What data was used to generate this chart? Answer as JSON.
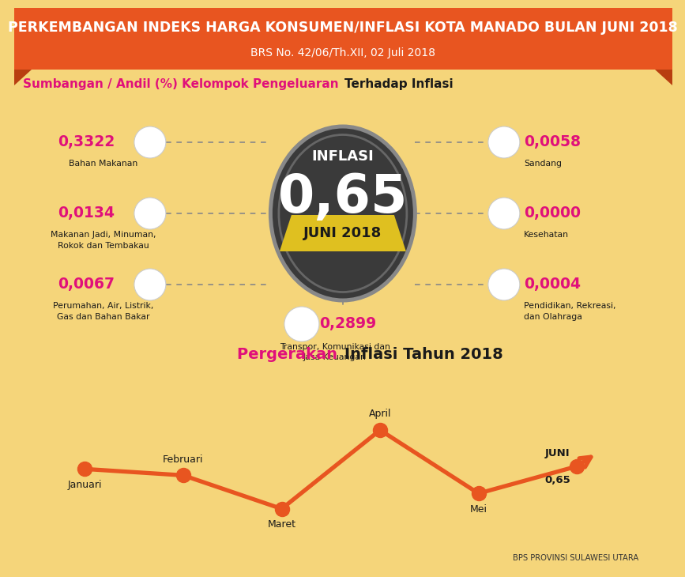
{
  "title": "PERKEMBANGAN INDEKS HARGA KONSUMEN/INFLASI KOTA MANADO BULAN JUNI 2018",
  "subtitle": "BRS No. 42/06/Th.XII, 02 Juli 2018",
  "bg_color": "#F5D57A",
  "header_bg": "#E85520",
  "header_text_color": "#FFFFFF",
  "section1_title_pink": "Sumbangan / Andil (%) Kelompok Pengeluaran ",
  "section1_title_black": "Terhadap Inflasi",
  "section2_title_pink": "Pergerakan ",
  "section2_title_black": "Inflasi Tahun 2018",
  "inflasi_value": "0,65",
  "inflasi_label": "INFLASI",
  "inflasi_month": "JUNI 2018",
  "yellow_banner_color": "#DFC020",
  "left_items": [
    {
      "value": "0,3322",
      "label": "Bahan Makanan"
    },
    {
      "value": "0,0134",
      "label": "Makanan Jadi, Minuman,\nRokok dan Tembakau"
    },
    {
      "value": "0,0067",
      "label": "Perumahan, Air, Listrik,\nGas dan Bahan Bakar"
    }
  ],
  "right_items": [
    {
      "value": "0,0058",
      "label": "Sandang"
    },
    {
      "value": "0,0000",
      "label": "Kesehatan"
    },
    {
      "value": "0,0004",
      "label": "Pendidikan, Rekreasi,\ndan Olahraga"
    }
  ],
  "bottom_center": {
    "value": "0,2899",
    "label": "Transpor, Komunikasi dan\nJasa Keuangan"
  },
  "pink_color": "#E0107A",
  "dark_color": "#1A1A1A",
  "orange_color": "#E85520",
  "month_labels": [
    "Januari",
    "Februari",
    "Maret",
    "April",
    "Mei",
    "JUNI"
  ],
  "month_values": [
    0.62,
    0.55,
    0.18,
    1.05,
    0.35,
    0.65
  ],
  "bps_text": "BPS PROVINSI SULAWESI UTARA"
}
